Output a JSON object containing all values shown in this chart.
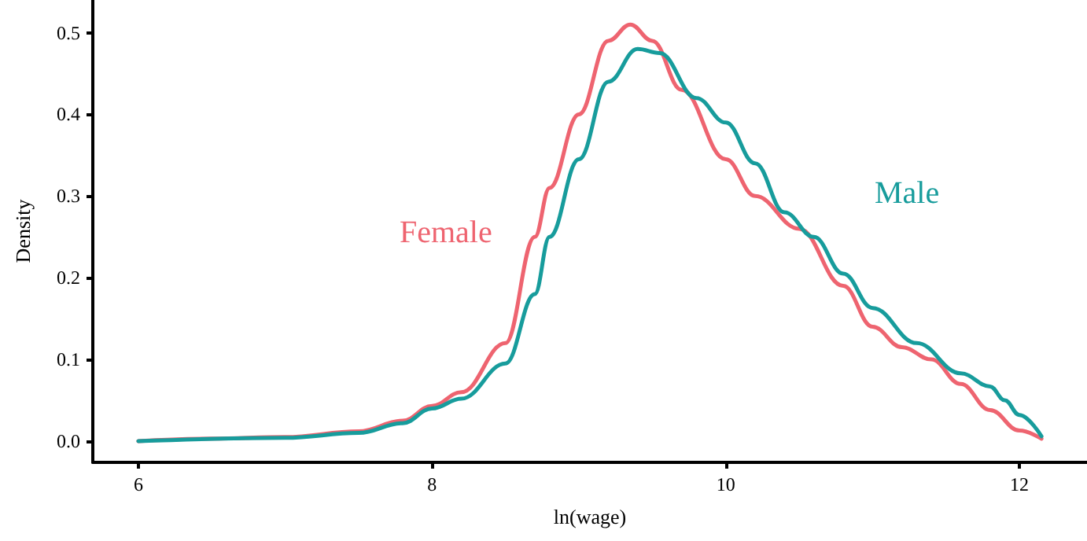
{
  "chart_data": {
    "type": "line",
    "xlabel": "ln(wage)",
    "ylabel": "Density",
    "xlim": [
      5.69,
      12.46
    ],
    "xticks": [
      6,
      8,
      10,
      12
    ],
    "ylim": [
      -0.026,
      0.54
    ],
    "yticks": [
      {
        "value": 0,
        "label": "0.0"
      },
      0.1,
      0.2,
      0.3,
      0.4,
      0.5
    ],
    "grid": false,
    "legend": false,
    "marker": "none",
    "line_style": "solid",
    "series": [
      {
        "name": "Female",
        "color": "#ee6470",
        "x": [
          6.0,
          6.5,
          7.0,
          7.5,
          7.8,
          8.0,
          8.2,
          8.5,
          8.7,
          8.8,
          9.0,
          9.2,
          9.35,
          9.5,
          9.7,
          10.0,
          10.2,
          10.5,
          10.8,
          11.0,
          11.2,
          11.4,
          11.6,
          11.8,
          12.0,
          12.15
        ],
        "values": [
          0.0,
          0.003,
          0.005,
          0.012,
          0.025,
          0.043,
          0.06,
          0.12,
          0.25,
          0.31,
          0.4,
          0.49,
          0.51,
          0.49,
          0.43,
          0.345,
          0.3,
          0.26,
          0.19,
          0.14,
          0.115,
          0.1,
          0.07,
          0.038,
          0.013,
          0.003
        ]
      },
      {
        "name": "Male",
        "color": "#179c9c",
        "x": [
          6.0,
          7.0,
          7.5,
          7.8,
          8.0,
          8.2,
          8.5,
          8.7,
          8.8,
          9.0,
          9.2,
          9.4,
          9.55,
          9.8,
          10.0,
          10.2,
          10.4,
          10.6,
          10.8,
          11.0,
          11.3,
          11.6,
          11.8,
          11.9,
          12.0,
          12.15
        ],
        "values": [
          0.0,
          0.004,
          0.01,
          0.022,
          0.04,
          0.052,
          0.095,
          0.18,
          0.25,
          0.345,
          0.44,
          0.48,
          0.475,
          0.42,
          0.39,
          0.34,
          0.28,
          0.25,
          0.205,
          0.163,
          0.12,
          0.083,
          0.067,
          0.05,
          0.032,
          0.006
        ]
      }
    ]
  }
}
